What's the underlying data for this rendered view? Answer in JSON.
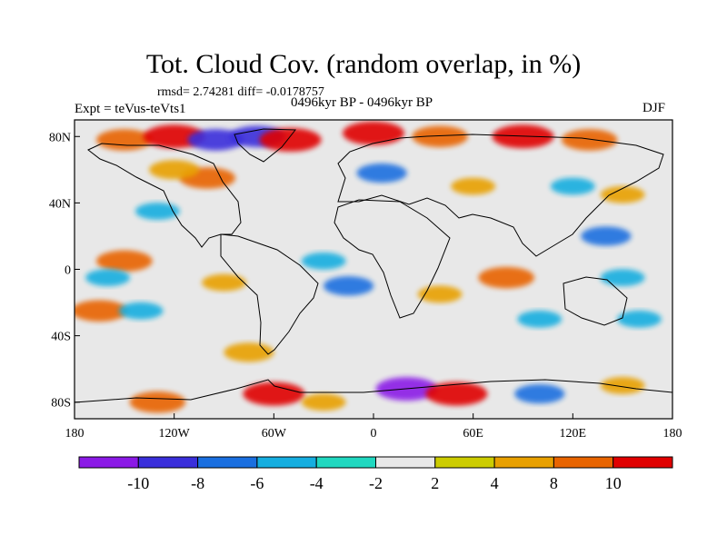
{
  "title": "Tot. Cloud Cov. (random overlap, in %)",
  "stats": "rmsd= 2.74281 diff= -0.0178757",
  "experiment": "Expt = teVus-teVts1",
  "period": "0496kyr BP - 0496kyr BP",
  "season": "DJF",
  "chart_data": {
    "type": "heatmap",
    "projection": "cylindrical equidistant",
    "x_ticks": [
      "180",
      "120W",
      "60W",
      "0",
      "60E",
      "120E",
      "180"
    ],
    "y_ticks": [
      "80N",
      "40N",
      "0",
      "40S",
      "80S"
    ],
    "xlim": [
      -180,
      180
    ],
    "ylim": [
      -90,
      90
    ],
    "colorbar": {
      "levels": [
        "-10",
        "-8",
        "-6",
        "-4",
        "-2",
        "2",
        "4",
        "8",
        "10"
      ],
      "colors": [
        "#8b1ae6",
        "#3a2fdb",
        "#1a6fe0",
        "#15aee0",
        "#20d8c0",
        "#e8e8e8",
        "#cccc00",
        "#e8a000",
        "#e86400",
        "#e00000"
      ]
    },
    "anomalies": [
      {
        "lon": -150,
        "lat": 78,
        "value": 8
      },
      {
        "lon": -120,
        "lat": 80,
        "value": 10
      },
      {
        "lon": -95,
        "lat": 78,
        "value": -8
      },
      {
        "lon": -70,
        "lat": 80,
        "value": -8
      },
      {
        "lon": -50,
        "lat": 78,
        "value": 10
      },
      {
        "lon": 0,
        "lat": 82,
        "value": 10
      },
      {
        "lon": 40,
        "lat": 80,
        "value": 8
      },
      {
        "lon": 90,
        "lat": 80,
        "value": 10
      },
      {
        "lon": 130,
        "lat": 78,
        "value": 8
      },
      {
        "lon": -100,
        "lat": 55,
        "value": 8
      },
      {
        "lon": -120,
        "lat": 60,
        "value": 6
      },
      {
        "lon": 5,
        "lat": 58,
        "value": -6
      },
      {
        "lon": 60,
        "lat": 50,
        "value": 4
      },
      {
        "lon": 120,
        "lat": 50,
        "value": -4
      },
      {
        "lon": 150,
        "lat": 45,
        "value": 4
      },
      {
        "lon": -130,
        "lat": 35,
        "value": -4
      },
      {
        "lon": 140,
        "lat": 20,
        "value": -6
      },
      {
        "lon": 150,
        "lat": -5,
        "value": -4
      },
      {
        "lon": -150,
        "lat": 5,
        "value": 8
      },
      {
        "lon": -160,
        "lat": -5,
        "value": -4
      },
      {
        "lon": -90,
        "lat": -8,
        "value": 4
      },
      {
        "lon": -30,
        "lat": 5,
        "value": -4
      },
      {
        "lon": -15,
        "lat": -10,
        "value": -6
      },
      {
        "lon": 80,
        "lat": -5,
        "value": 8
      },
      {
        "lon": 40,
        "lat": -15,
        "value": 4
      },
      {
        "lon": -165,
        "lat": -25,
        "value": 8
      },
      {
        "lon": -140,
        "lat": -25,
        "value": -4
      },
      {
        "lon": 100,
        "lat": -30,
        "value": -4
      },
      {
        "lon": 160,
        "lat": -30,
        "value": -4
      },
      {
        "lon": -75,
        "lat": -50,
        "value": 6
      },
      {
        "lon": -130,
        "lat": -80,
        "value": 8
      },
      {
        "lon": -60,
        "lat": -75,
        "value": 10
      },
      {
        "lon": -30,
        "lat": -80,
        "value": 4
      },
      {
        "lon": 20,
        "lat": -72,
        "value": -10
      },
      {
        "lon": 50,
        "lat": -75,
        "value": 10
      },
      {
        "lon": 100,
        "lat": -75,
        "value": -6
      },
      {
        "lon": 150,
        "lat": -70,
        "value": 4
      }
    ]
  }
}
